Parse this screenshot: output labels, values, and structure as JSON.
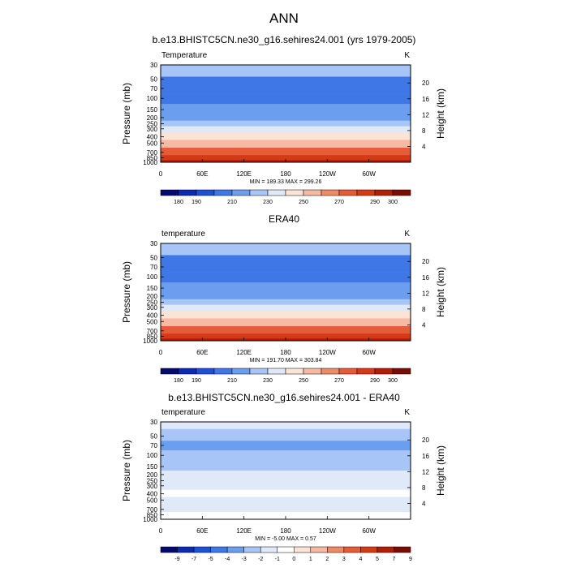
{
  "main_title": "ANN",
  "colors": {
    "abs_scale": [
      "#040b70",
      "#0a2bb3",
      "#1e50d6",
      "#3f77e6",
      "#6c9ef0",
      "#a7c6f7",
      "#dfe9f8",
      "#fbe3d5",
      "#f6b9a1",
      "#ef8a68",
      "#e65b38",
      "#d53a17",
      "#b01e06",
      "#7a0c02"
    ],
    "diff_scale": [
      "#040b70",
      "#0a2bb3",
      "#1e50d6",
      "#3f77e6",
      "#6c9ef0",
      "#a7c6f7",
      "#dfe9f8",
      "#ffffff",
      "#fbe3d5",
      "#f6b9a1",
      "#ef8a68",
      "#e65b38",
      "#d53a17",
      "#b01e06",
      "#7a0c02"
    ]
  },
  "chart_data": [
    {
      "type": "heatmap",
      "title": "b.e13.BHISTC5CN.ne30_g16.sehires24.001 (yrs 1979-2005)",
      "left_label": "Temperature",
      "right_label": "K",
      "ylabel": "Pressure (mb)",
      "y2label": "Height (km)",
      "yticks": [
        "30",
        "50",
        "70",
        "100",
        "150",
        "200",
        "250",
        "300",
        "400",
        "500",
        "700",
        "850",
        "1000"
      ],
      "y2ticks": [
        "20",
        "16",
        "12",
        "8",
        "4"
      ],
      "xticks": [
        "0",
        "60E",
        "120E",
        "180",
        "120W",
        "60W"
      ],
      "stats": "MIN = 189.33  MAX = 299.26",
      "colorbar_labels": [
        "180",
        "190",
        "210",
        "230",
        "250",
        "270",
        "290",
        "300"
      ],
      "scale": "abs",
      "bands": [
        {
          "p": 30,
          "v": 220
        },
        {
          "p": 70,
          "v": 205
        },
        {
          "p": 100,
          "v": 200
        },
        {
          "p": 150,
          "v": 212
        },
        {
          "p": 200,
          "v": 218
        },
        {
          "p": 250,
          "v": 225
        },
        {
          "p": 300,
          "v": 232
        },
        {
          "p": 400,
          "v": 245
        },
        {
          "p": 500,
          "v": 255
        },
        {
          "p": 700,
          "v": 270
        },
        {
          "p": 850,
          "v": 280
        },
        {
          "p": 1000,
          "v": 290
        }
      ]
    },
    {
      "type": "heatmap",
      "title": "ERA40",
      "left_label": "temperature",
      "right_label": "K",
      "ylabel": "Pressure (mb)",
      "y2label": "Height (km)",
      "yticks": [
        "30",
        "50",
        "70",
        "100",
        "150",
        "200",
        "250",
        "300",
        "400",
        "500",
        "700",
        "850",
        "1000"
      ],
      "y2ticks": [
        "20",
        "16",
        "12",
        "8",
        "4"
      ],
      "xticks": [
        "0",
        "60E",
        "120E",
        "180",
        "120W",
        "60W"
      ],
      "stats": "MIN = 191.70  MAX = 303.84",
      "colorbar_labels": [
        "180",
        "190",
        "210",
        "230",
        "250",
        "270",
        "290",
        "300"
      ],
      "scale": "abs",
      "bands": [
        {
          "p": 30,
          "v": 220
        },
        {
          "p": 70,
          "v": 208
        },
        {
          "p": 100,
          "v": 202
        },
        {
          "p": 150,
          "v": 212
        },
        {
          "p": 200,
          "v": 218
        },
        {
          "p": 250,
          "v": 226
        },
        {
          "p": 300,
          "v": 233
        },
        {
          "p": 400,
          "v": 246
        },
        {
          "p": 500,
          "v": 256
        },
        {
          "p": 700,
          "v": 270
        },
        {
          "p": 850,
          "v": 281
        },
        {
          "p": 1000,
          "v": 292
        }
      ]
    },
    {
      "type": "heatmap",
      "title": "b.e13.BHISTC5CN.ne30_g16.sehires24.001 - ERA40",
      "left_label": "temperature",
      "right_label": "K",
      "ylabel": "Pressure (mb)",
      "y2label": "Height (km)",
      "yticks": [
        "30",
        "50",
        "70",
        "100",
        "150",
        "200",
        "250",
        "300",
        "400",
        "500",
        "700",
        "850",
        "1000"
      ],
      "y2ticks": [
        "20",
        "16",
        "12",
        "8",
        "4"
      ],
      "xticks": [
        "0",
        "60E",
        "120E",
        "180",
        "120W",
        "60W"
      ],
      "stats": "MIN = -5.00  MAX =  0.57",
      "colorbar_labels": [
        "-9",
        "-7",
        "-5",
        "-4",
        "-3",
        "-2",
        "-1",
        "0",
        "1",
        "2",
        "3",
        "4",
        "5",
        "7",
        "9"
      ],
      "scale": "diff",
      "bands": [
        {
          "p": 30,
          "v": -2
        },
        {
          "p": 50,
          "v": -3
        },
        {
          "p": 70,
          "v": -4
        },
        {
          "p": 100,
          "v": -3
        },
        {
          "p": 150,
          "v": -3
        },
        {
          "p": 200,
          "v": -2
        },
        {
          "p": 300,
          "v": -2
        },
        {
          "p": 400,
          "v": -1
        },
        {
          "p": 500,
          "v": -2
        },
        {
          "p": 700,
          "v": -2
        },
        {
          "p": 850,
          "v": -1
        },
        {
          "p": 1000,
          "v": -1
        }
      ]
    }
  ]
}
